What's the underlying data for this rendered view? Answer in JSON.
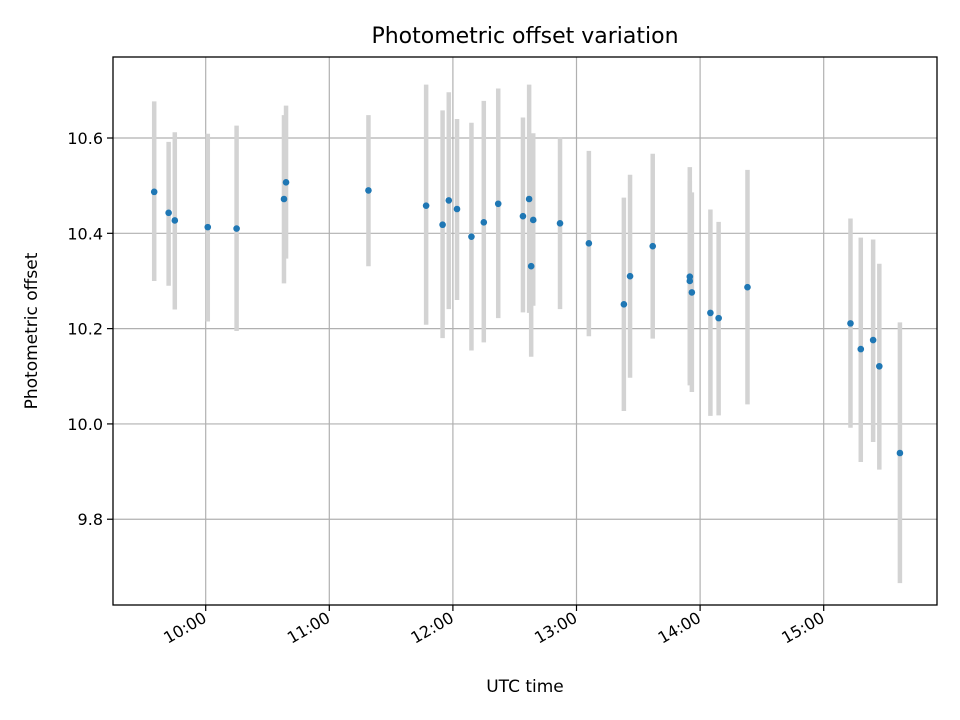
{
  "chart_data": {
    "type": "scatter",
    "title": "Photometric offset variation",
    "xlabel": "UTC time",
    "ylabel": "Photometric offset",
    "grid": true,
    "x_ticks": [
      "10:00",
      "11:00",
      "12:00",
      "13:00",
      "14:00",
      "15:00"
    ],
    "y_ticks": [
      "9.8",
      "10.0",
      "10.2",
      "10.4",
      "10.6"
    ],
    "xlim": [
      "09:15",
      "15:55"
    ],
    "ylim": [
      9.62,
      10.77
    ],
    "colors": {
      "point": "#1f77b4",
      "errorbar": "#d3d3d3"
    },
    "points": [
      {
        "time": "09:35",
        "y": 10.487,
        "yerr": [
          0.187,
          0.19
        ]
      },
      {
        "time": "09:42",
        "y": 10.443,
        "yerr": [
          0.153,
          0.149
        ]
      },
      {
        "time": "09:45",
        "y": 10.427,
        "yerr": [
          0.187,
          0.185
        ]
      },
      {
        "time": "10:01",
        "y": 10.413,
        "yerr": [
          0.198,
          0.196
        ]
      },
      {
        "time": "10:15",
        "y": 10.41,
        "yerr": [
          0.215,
          0.216
        ]
      },
      {
        "time": "10:38",
        "y": 10.472,
        "yerr": [
          0.177,
          0.176
        ]
      },
      {
        "time": "10:39",
        "y": 10.507,
        "yerr": [
          0.16,
          0.161
        ]
      },
      {
        "time": "11:19",
        "y": 10.49,
        "yerr": [
          0.159,
          0.158
        ]
      },
      {
        "time": "11:47",
        "y": 10.458,
        "yerr": [
          0.25,
          0.254
        ]
      },
      {
        "time": "11:55",
        "y": 10.418,
        "yerr": [
          0.238,
          0.24
        ]
      },
      {
        "time": "11:58",
        "y": 10.469,
        "yerr": [
          0.228,
          0.227
        ]
      },
      {
        "time": "12:02",
        "y": 10.451,
        "yerr": [
          0.191,
          0.189
        ]
      },
      {
        "time": "12:09",
        "y": 10.393,
        "yerr": [
          0.239,
          0.239
        ]
      },
      {
        "time": "12:15",
        "y": 10.423,
        "yerr": [
          0.252,
          0.255
        ]
      },
      {
        "time": "12:22",
        "y": 10.462,
        "yerr": [
          0.24,
          0.242
        ]
      },
      {
        "time": "12:34",
        "y": 10.436,
        "yerr": [
          0.202,
          0.207
        ]
      },
      {
        "time": "12:37",
        "y": 10.472,
        "yerr": [
          0.239,
          0.24
        ]
      },
      {
        "time": "12:38",
        "y": 10.331,
        "yerr": [
          0.19,
          0.19
        ]
      },
      {
        "time": "12:39",
        "y": 10.428,
        "yerr": [
          0.18,
          0.182
        ]
      },
      {
        "time": "12:52",
        "y": 10.421,
        "yerr": [
          0.18,
          0.181
        ]
      },
      {
        "time": "13:06",
        "y": 10.379,
        "yerr": [
          0.195,
          0.194
        ]
      },
      {
        "time": "13:23",
        "y": 10.251,
        "yerr": [
          0.224,
          0.224
        ]
      },
      {
        "time": "13:26",
        "y": 10.31,
        "yerr": [
          0.213,
          0.213
        ]
      },
      {
        "time": "13:37",
        "y": 10.373,
        "yerr": [
          0.194,
          0.194
        ]
      },
      {
        "time": "13:55",
        "y": 10.309,
        "yerr": [
          0.228,
          0.23
        ]
      },
      {
        "time": "13:55",
        "y": 10.3,
        "yerr": [
          0.21,
          0.21
        ]
      },
      {
        "time": "13:56",
        "y": 10.276,
        "yerr": [
          0.209,
          0.21
        ]
      },
      {
        "time": "14:05",
        "y": 10.233,
        "yerr": [
          0.216,
          0.217
        ]
      },
      {
        "time": "14:09",
        "y": 10.222,
        "yerr": [
          0.204,
          0.202
        ]
      },
      {
        "time": "14:23",
        "y": 10.287,
        "yerr": [
          0.246,
          0.246
        ]
      },
      {
        "time": "15:13",
        "y": 10.211,
        "yerr": [
          0.219,
          0.22
        ]
      },
      {
        "time": "15:18",
        "y": 10.157,
        "yerr": [
          0.237,
          0.234
        ]
      },
      {
        "time": "15:24",
        "y": 10.176,
        "yerr": [
          0.214,
          0.211
        ]
      },
      {
        "time": "15:27",
        "y": 10.121,
        "yerr": [
          0.217,
          0.215
        ]
      },
      {
        "time": "15:37",
        "y": 9.939,
        "yerr": [
          0.273,
          0.274
        ]
      }
    ]
  }
}
